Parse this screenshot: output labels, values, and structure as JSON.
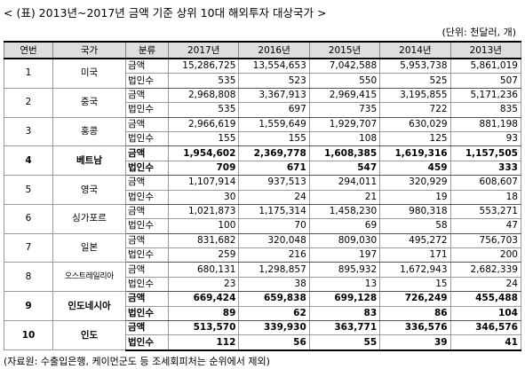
{
  "title": "< (표) 2013년~2017년 금액 기준 상위 10대 해외투자 대상국가 >",
  "unit": "(단위: 천달러, 개)",
  "headers": [
    "연번",
    "국가",
    "분류",
    "2017년",
    "2016년",
    "2015년",
    "2014년",
    "2013년"
  ],
  "label_amount": "금액",
  "label_corps": "법인수",
  "rows": [
    {
      "no": "1",
      "country": "미국",
      "bold": false,
      "amount": [
        "15,286,725",
        "13,554,653",
        "7,042,588",
        "5,953,738",
        "5,861,019"
      ],
      "corps": [
        "535",
        "523",
        "550",
        "525",
        "507"
      ]
    },
    {
      "no": "2",
      "country": "중국",
      "bold": false,
      "amount": [
        "2,968,808",
        "3,367,913",
        "2,969,415",
        "3,195,855",
        "5,171,236"
      ],
      "corps": [
        "535",
        "697",
        "735",
        "722",
        "835"
      ]
    },
    {
      "no": "3",
      "country": "홍콩",
      "bold": false,
      "amount": [
        "2,966,619",
        "1,559,649",
        "1,929,707",
        "630,029",
        "881,198"
      ],
      "corps": [
        "155",
        "155",
        "108",
        "125",
        "93"
      ]
    },
    {
      "no": "4",
      "country": "베트남",
      "bold": true,
      "amount": [
        "1,954,602",
        "2,369,778",
        "1,608,385",
        "1,619,316",
        "1,157,505"
      ],
      "corps": [
        "709",
        "671",
        "547",
        "459",
        "333"
      ]
    },
    {
      "no": "5",
      "country": "영국",
      "bold": false,
      "amount": [
        "1,107,914",
        "937,513",
        "294,011",
        "320,929",
        "608,607"
      ],
      "corps": [
        "30",
        "24",
        "21",
        "19",
        "18"
      ]
    },
    {
      "no": "6",
      "country": "싱가포르",
      "bold": false,
      "amount": [
        "1,021,873",
        "1,175,314",
        "1,458,230",
        "980,318",
        "553,271"
      ],
      "corps": [
        "100",
        "70",
        "69",
        "58",
        "47"
      ]
    },
    {
      "no": "7",
      "country": "일본",
      "bold": false,
      "amount": [
        "831,682",
        "320,048",
        "809,030",
        "495,272",
        "756,703"
      ],
      "corps": [
        "259",
        "216",
        "197",
        "171",
        "200"
      ]
    },
    {
      "no": "8",
      "country": "오스트레일리아",
      "bold": false,
      "small": true,
      "amount": [
        "680,131",
        "1,298,857",
        "895,932",
        "1,672,943",
        "2,682,339"
      ],
      "corps": [
        "23",
        "38",
        "13",
        "15",
        "24"
      ]
    },
    {
      "no": "9",
      "country": "인도네시아",
      "bold": true,
      "amount": [
        "669,424",
        "659,838",
        "699,128",
        "726,249",
        "455,488"
      ],
      "corps": [
        "89",
        "62",
        "83",
        "86",
        "104"
      ]
    },
    {
      "no": "10",
      "country": "인도",
      "bold": true,
      "amount": [
        "513,570",
        "339,930",
        "363,771",
        "336,576",
        "346,576"
      ],
      "corps": [
        "112",
        "56",
        "55",
        "39",
        "41"
      ]
    }
  ],
  "footnote": "(자료원: 수출입은행, 케이먼군도 등 조세회피처는 순위에서 제외)"
}
